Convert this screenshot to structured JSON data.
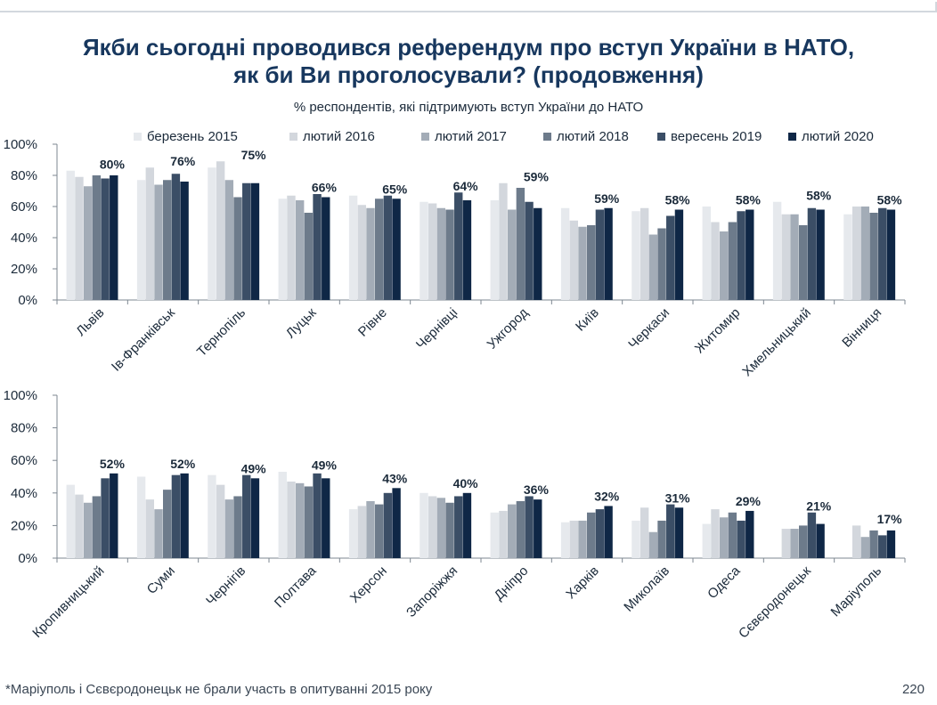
{
  "header": {
    "title_line1": "Якби сьогодні проводився референдум про вступ України в НАТО,",
    "title_line2": "як би Ви проголосували? (продовження)",
    "subtitle": "% респондентів, які підтримують вступ України до НАТО"
  },
  "footer": {
    "footnote": "*Маріуполь і Сєвєродонецьк не брали участь в опитуванні 2015 року",
    "page_number": "220"
  },
  "colors": {
    "series": [
      "#e6e9ed",
      "#d3d7dd",
      "#a3acb7",
      "#6d7b8b",
      "#3b4e66",
      "#0f2746"
    ]
  },
  "chart_data": [
    {
      "type": "bar",
      "ylim": [
        0,
        100
      ],
      "yticks": [
        "0%",
        "20%",
        "40%",
        "60%",
        "80%",
        "100%"
      ],
      "grid": false,
      "legend_position": "top",
      "categories": [
        "Львів",
        "Ів-Франківськ",
        "Тернопіль",
        "Луцьк",
        "Рівне",
        "Чернівці",
        "Ужгород",
        "Київ",
        "Черкаси",
        "Житомир",
        "Хмельницький",
        "Вінниця"
      ],
      "series": [
        {
          "name": "березень 2015",
          "values": [
            83,
            77,
            85,
            65,
            67,
            63,
            64,
            59,
            57,
            60,
            63,
            55
          ]
        },
        {
          "name": "лютий 2016",
          "values": [
            79,
            85,
            89,
            67,
            61,
            62,
            75,
            51,
            59,
            50,
            55,
            60
          ]
        },
        {
          "name": "лютий 2017",
          "values": [
            73,
            74,
            77,
            64,
            59,
            59,
            58,
            47,
            42,
            44,
            55,
            60
          ]
        },
        {
          "name": "лютий 2018",
          "values": [
            80,
            77,
            66,
            56,
            65,
            58,
            72,
            48,
            46,
            50,
            48,
            56
          ]
        },
        {
          "name": "вересень 2019",
          "values": [
            78,
            81,
            75,
            68,
            67,
            69,
            63,
            58,
            54,
            57,
            59,
            59
          ]
        },
        {
          "name": "лютий 2020",
          "values": [
            80,
            76,
            75,
            66,
            65,
            64,
            59,
            59,
            58,
            58,
            58,
            58
          ]
        }
      ],
      "data_labels": [
        "80%",
        "76%",
        "75%",
        "66%",
        "65%",
        "64%",
        "59%",
        "59%",
        "58%",
        "58%",
        "58%",
        "58%"
      ]
    },
    {
      "type": "bar",
      "ylim": [
        0,
        100
      ],
      "yticks": [
        "0%",
        "20%",
        "40%",
        "60%",
        "80%",
        "100%"
      ],
      "grid": false,
      "categories": [
        "Кропивницький",
        "Суми",
        "Чернігів",
        "Полтава",
        "Херсон",
        "Запоріжжя",
        "Дніпро",
        "Харків",
        "Миколаїв",
        "Одеса",
        "Сєвєродонецьк",
        "Маріуполь"
      ],
      "series": [
        {
          "name": "березень 2015",
          "values": [
            45,
            50,
            51,
            53,
            30,
            40,
            28,
            22,
            23,
            21,
            null,
            null
          ]
        },
        {
          "name": "лютий 2016",
          "values": [
            39,
            36,
            45,
            47,
            32,
            38,
            29,
            23,
            31,
            30,
            18,
            20
          ]
        },
        {
          "name": "лютий 2017",
          "values": [
            34,
            30,
            36,
            46,
            35,
            37,
            33,
            23,
            16,
            25,
            18,
            13
          ]
        },
        {
          "name": "лютий 2018",
          "values": [
            38,
            42,
            38,
            44,
            33,
            34,
            35,
            28,
            23,
            28,
            20,
            17
          ]
        },
        {
          "name": "вересень 2019",
          "values": [
            49,
            51,
            51,
            52,
            40,
            38,
            38,
            30,
            33,
            23,
            28,
            14
          ]
        },
        {
          "name": "лютий 2020",
          "values": [
            52,
            52,
            49,
            49,
            43,
            40,
            36,
            32,
            31,
            29,
            21,
            17
          ]
        }
      ],
      "data_labels": [
        "52%",
        "52%",
        "49%",
        "49%",
        "43%",
        "40%",
        "36%",
        "32%",
        "31%",
        "29%",
        "21%",
        "17%"
      ]
    }
  ]
}
